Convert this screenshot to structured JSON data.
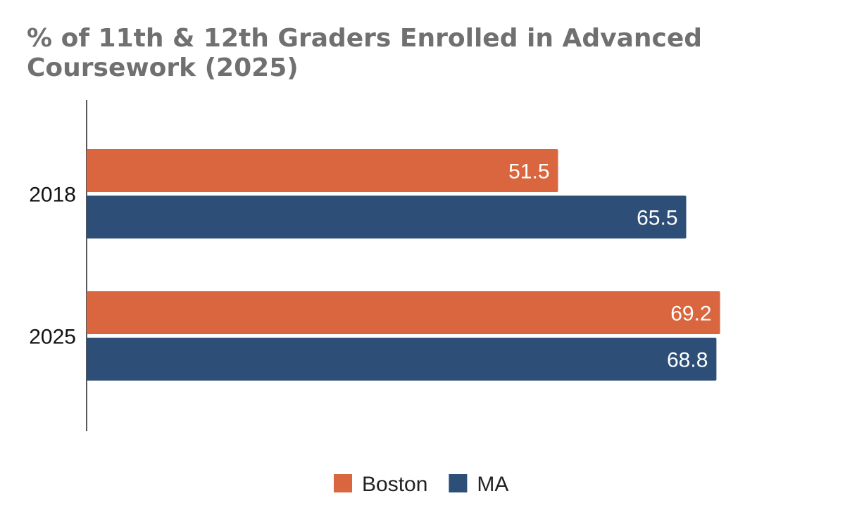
{
  "chart_data": {
    "type": "bar",
    "orientation": "horizontal",
    "title": "% of 11th & 12th Graders Enrolled in Advanced Coursework (2025)",
    "categories": [
      "2018",
      "2025"
    ],
    "series": [
      {
        "name": "Boston",
        "values": [
          51.5,
          69.2
        ],
        "color": "#d9663e"
      },
      {
        "name": "MA",
        "values": [
          65.5,
          68.8
        ],
        "color": "#2d4e76"
      }
    ],
    "xlim": [
      0,
      80
    ],
    "xlabel": "",
    "ylabel": "",
    "grid": false,
    "data_labels": true,
    "legend": "bottom"
  }
}
